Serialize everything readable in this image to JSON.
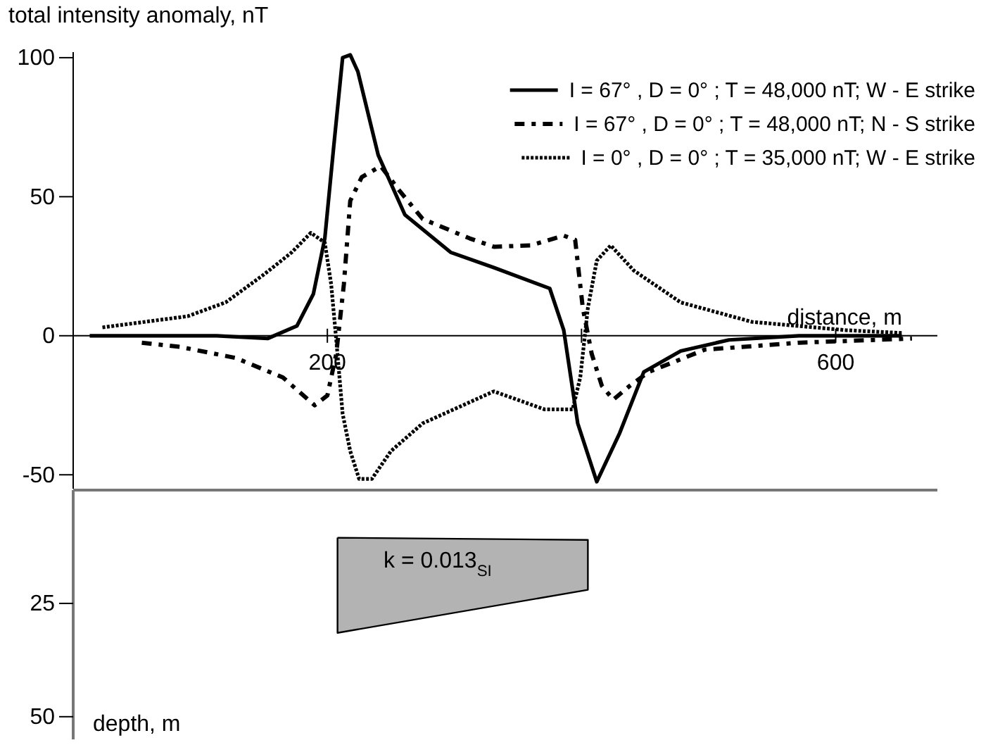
{
  "chart_data": [
    {
      "type": "line",
      "ylabel": "total intensity anomaly, nT",
      "xlabel": "distance, m",
      "xlim": [
        0,
        680
      ],
      "xticks": [
        200,
        {
          "value": 400,
          "label": null
        },
        600
      ],
      "ylim": [
        -55,
        102
      ],
      "yticks": [
        -50,
        0,
        50,
        100
      ],
      "legend": "top right",
      "grid": false,
      "marker": "none",
      "series": [
        {
          "name": "I = 67° , D = 0° ; T = 48,000 nT; W - E strike",
          "color": "#000000",
          "line_style": "solid",
          "x": [
            13,
            113,
            153,
            176,
            189,
            198,
            205,
            212,
            218,
            224,
            240,
            261,
            297,
            331,
            375,
            386,
            397,
            412,
            430,
            449,
            478,
            516,
            571,
            652
          ],
          "values": [
            0,
            0,
            -1,
            3.5,
            15,
            35,
            68,
            100,
            101,
            95,
            65,
            43.5,
            30,
            24.5,
            17,
            2,
            -31.5,
            -52.5,
            -35,
            -13,
            -5.5,
            -1.5,
            0,
            0
          ]
        },
        {
          "name": "I = 67° , D = 0° ; T = 48,000 nT; N - S strike",
          "color": "#000000",
          "line_style": "dashed",
          "x": [
            54,
            84,
            128,
            165,
            190,
            200,
            207,
            213,
            218,
            227,
            242,
            257,
            275,
            312,
            331,
            360,
            386,
            395,
            401,
            408,
            416,
            425,
            438,
            453,
            497,
            571,
            660
          ],
          "values": [
            -2.5,
            -4,
            -8,
            -15,
            -25,
            -21.5,
            -6.5,
            18.5,
            48.5,
            57,
            61,
            52,
            42,
            35,
            32,
            32.5,
            36,
            34.5,
            10,
            -6.5,
            -18,
            -23,
            -18,
            -13,
            -5,
            -2.5,
            -1
          ]
        },
        {
          "name": "I = 0° , D = 0° ; T = 35,000 nT; W - E strike",
          "color": "#000000",
          "line_style": "dotted",
          "x": [
            23,
            90,
            120,
            150,
            172,
            187,
            198,
            203,
            207,
            212,
            218,
            225,
            235,
            250,
            275,
            331,
            371,
            393,
            399,
            405,
            412,
            423,
            441,
            478,
            534,
            608,
            652
          ],
          "values": [
            3,
            7,
            12,
            22,
            30,
            37,
            33.5,
            18.5,
            -1.5,
            -28,
            -41.5,
            -51.5,
            -51.5,
            -41.5,
            -31.5,
            -20,
            -26.5,
            -26.5,
            -15,
            10,
            27,
            32.5,
            23.5,
            12,
            5,
            2,
            1
          ]
        }
      ]
    },
    {
      "type": "area",
      "ylabel": "depth, m",
      "xlim": [
        0,
        680
      ],
      "ylim": [
        55,
        0
      ],
      "yticks": [
        25,
        50
      ],
      "tick_labels": "y",
      "grid": false,
      "marker": "none",
      "annotations": [
        "k = 0.013$_{SI}$"
      ],
      "series": [
        {
          "color": "#b3b3b3",
          "line_style": "solid",
          "x": [
            208,
            405,
            405,
            208,
            208
          ],
          "values": [
            10.5,
            11,
            22,
            31.5,
            10.5
          ]
        }
      ]
    }
  ]
}
